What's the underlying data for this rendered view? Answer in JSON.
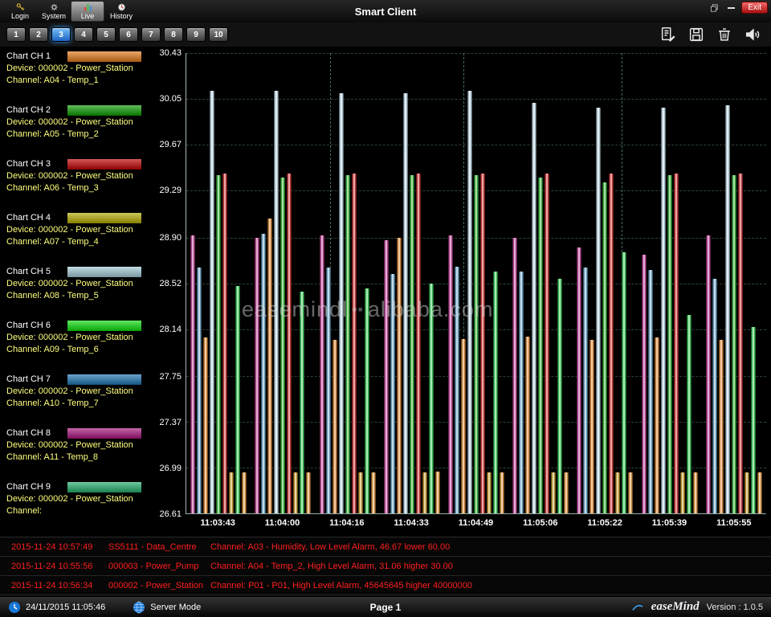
{
  "window": {
    "title": "Smart Client",
    "controls": {
      "exit_label": "Exit"
    }
  },
  "toolbar": {
    "items": [
      {
        "label": "Login"
      },
      {
        "label": "System"
      },
      {
        "label": "Live",
        "active": true
      },
      {
        "label": "History"
      }
    ]
  },
  "tabs": {
    "items": [
      "1",
      "2",
      "3",
      "4",
      "5",
      "6",
      "7",
      "8",
      "9",
      "10"
    ],
    "active": "3"
  },
  "sidebar": {
    "channels": [
      {
        "title": "Chart CH 1",
        "device": "Device: 000002 - Power_Station",
        "channel": "Channel: A04 - Temp_1",
        "color": "#E07818"
      },
      {
        "title": "Chart CH 2",
        "device": "Device: 000002 - Power_Station",
        "channel": "Channel: A05 - Temp_2",
        "color": "#0A9A00"
      },
      {
        "title": "Chart CH 3",
        "device": "Device: 000002 - Power_Station",
        "channel": "Channel: A06 - Temp_3",
        "color": "#BE0000"
      },
      {
        "title": "Chart CH 4",
        "device": "Device: 000002 - Power_Station",
        "channel": "Channel: A07 - Temp_4",
        "color": "#B4AA00"
      },
      {
        "title": "Chart CH 5",
        "device": "Device: 000002 - Power_Station",
        "channel": "Channel: A08 - Temp_5",
        "color": "#A2CAD6"
      },
      {
        "title": "Chart CH 6",
        "device": "Device: 000002 - Power_Station",
        "channel": "Channel: A09 - Temp_6",
        "color": "#0ADC0A"
      },
      {
        "title": "Chart CH 7",
        "device": "Device: 000002 - Power_Station",
        "channel": "Channel: A10 - Temp_7",
        "color": "#1C72B0"
      },
      {
        "title": "Chart CH 8",
        "device": "Device: 000002 - Power_Station",
        "channel": "Channel: A11 - Temp_8",
        "color": "#A6127A"
      },
      {
        "title": "Chart CH 9",
        "device": "Device: 000002 - Power_Station",
        "channel": "Channel:",
        "color": "#22AC6A"
      }
    ]
  },
  "chart_data": {
    "type": "bar",
    "title": "",
    "categories": [
      "11:03:43",
      "11:04:00",
      "11:04:16",
      "11:04:33",
      "11:04:49",
      "11:05:06",
      "11:05:22",
      "11:05:39",
      "11:05:55"
    ],
    "y_ticks": [
      30.43,
      30.05,
      29.67,
      29.29,
      28.9,
      28.52,
      28.14,
      27.75,
      27.37,
      26.99,
      26.61
    ],
    "ylim": [
      26.61,
      30.43
    ],
    "grid": "dashed",
    "legend_position": "left-sidebar",
    "v_guides": [
      0.248,
      0.478,
      0.75
    ],
    "series": [
      {
        "name": "CH 8",
        "color": "#c03a96",
        "values": [
          28.92,
          28.9,
          28.92,
          28.88,
          28.92,
          28.9,
          28.82,
          28.76,
          28.92
        ]
      },
      {
        "name": "CH 7",
        "color": "#6aa8cc",
        "values": [
          28.65,
          28.93,
          28.65,
          28.6,
          28.66,
          28.62,
          28.65,
          28.63,
          28.56
        ]
      },
      {
        "name": "CH 1",
        "color": "#e08428",
        "values": [
          28.07,
          29.06,
          28.05,
          28.9,
          28.06,
          28.08,
          28.05,
          28.07,
          28.05
        ]
      },
      {
        "name": "CH 5",
        "color": "#bcd8e4",
        "values": [
          30.12,
          30.12,
          30.1,
          30.1,
          30.12,
          30.02,
          29.98,
          29.98,
          30.0
        ]
      },
      {
        "name": "CH 2",
        "color": "#2cb42c",
        "values": [
          29.42,
          29.4,
          29.42,
          29.42,
          29.42,
          29.4,
          29.36,
          29.42,
          29.42
        ]
      },
      {
        "name": "CH 3",
        "color": "#d02c2c",
        "values": [
          29.43,
          29.43,
          29.43,
          29.43,
          29.43,
          29.43,
          29.43,
          29.43,
          29.43
        ]
      },
      {
        "name": "CH 4",
        "color": "#c89a20",
        "values": [
          26.95,
          26.95,
          26.95,
          26.95,
          26.95,
          26.95,
          26.95,
          26.95,
          26.95
        ]
      },
      {
        "name": "CH 6",
        "color": "#30cc50",
        "values": [
          28.5,
          28.45,
          28.48,
          28.52,
          28.62,
          28.56,
          28.78,
          28.26,
          28.16
        ]
      },
      {
        "name": "CH 9",
        "color": "#de9030",
        "values": [
          26.95,
          26.95,
          26.95,
          26.96,
          26.95,
          26.95,
          26.95,
          26.95,
          26.95
        ]
      }
    ]
  },
  "watermark": {
    "left": "easemindl",
    "mid": "▪▪",
    "right": "alibaba.com"
  },
  "alarms": [
    {
      "time": "2015-11-24 10:57:49",
      "device": "SS5111 - Data_Centre",
      "message": "Channel: A03 - Humidity, Low Level Alarm, 46.67 lower 60.00"
    },
    {
      "time": "2015-11-24 10:55:56",
      "device": "000003 - Power_Pump",
      "message": "Channel: A04 - Temp_2, High Level Alarm, 31.06 higher 30.00"
    },
    {
      "time": "2015-11-24 10:56:34",
      "device": "000002 - Power_Station",
      "message": "Channel: P01 - P01, High Level Alarm, 45645645 higher 40000000"
    }
  ],
  "statusbar": {
    "datetime": "24/11/2015 11:05:46",
    "mode": "Server Mode",
    "page": "Page 1",
    "brand": "easeMind",
    "version": "Version : 1.0.5"
  }
}
